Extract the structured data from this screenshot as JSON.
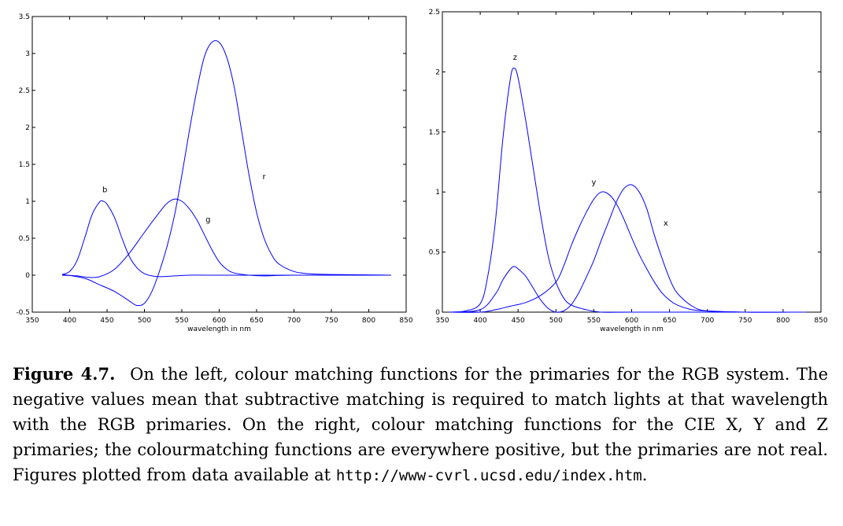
{
  "chart_data": [
    {
      "type": "line",
      "id": "rgb",
      "title": "",
      "xlabel": "wavelength in nm",
      "ylabel": "",
      "xlim": [
        350,
        850
      ],
      "ylim": [
        -0.5,
        3.5
      ],
      "xticks": [
        350,
        400,
        450,
        500,
        550,
        600,
        650,
        700,
        750,
        800,
        850
      ],
      "yticks": [
        -0.5,
        0,
        0.5,
        1,
        1.5,
        2,
        2.5,
        3,
        3.5
      ],
      "yticklabels": [
        "-0.5",
        "0",
        "0.5",
        "1",
        "1.5",
        "2",
        "2.5",
        "3",
        "3.5"
      ],
      "series": [
        {
          "name": "r",
          "color": "#0000ff",
          "label_at": [
            660,
            1.3
          ],
          "x": [
            390,
            410,
            425,
            440,
            460,
            480,
            490,
            500,
            510,
            520,
            530,
            540,
            550,
            560,
            570,
            580,
            590,
            600,
            610,
            620,
            630,
            640,
            650,
            660,
            670,
            680,
            700,
            720,
            750,
            830
          ],
          "y": [
            0.01,
            -0.02,
            -0.06,
            -0.13,
            -0.22,
            -0.35,
            -0.41,
            -0.38,
            -0.22,
            0.05,
            0.38,
            0.8,
            1.35,
            1.95,
            2.5,
            2.95,
            3.15,
            3.15,
            2.95,
            2.55,
            1.95,
            1.35,
            0.85,
            0.5,
            0.28,
            0.15,
            0.05,
            0.02,
            0.01,
            0
          ]
        },
        {
          "name": "g",
          "color": "#0000ff",
          "label_at": [
            585,
            0.72
          ],
          "x": [
            390,
            410,
            425,
            440,
            460,
            480,
            500,
            520,
            530,
            540,
            550,
            560,
            570,
            580,
            590,
            600,
            610,
            620,
            640,
            660,
            700,
            830
          ],
          "y": [
            0,
            -0.01,
            -0.03,
            -0.02,
            0.08,
            0.3,
            0.58,
            0.85,
            0.97,
            1.03,
            1.0,
            0.9,
            0.75,
            0.55,
            0.35,
            0.18,
            0.08,
            0.03,
            0.0,
            -0.01,
            0,
            0
          ]
        },
        {
          "name": "b",
          "color": "#0000ff",
          "label_at": [
            447,
            1.12
          ],
          "x": [
            390,
            400,
            410,
            420,
            430,
            440,
            445,
            450,
            460,
            470,
            480,
            490,
            500,
            510,
            520,
            540,
            560,
            600,
            700,
            830
          ],
          "y": [
            0.01,
            0.05,
            0.2,
            0.5,
            0.82,
            0.99,
            1.0,
            0.96,
            0.78,
            0.5,
            0.25,
            0.1,
            0.02,
            -0.01,
            -0.02,
            -0.01,
            0,
            0,
            0,
            0
          ]
        }
      ]
    },
    {
      "type": "line",
      "id": "xyz",
      "title": "",
      "xlabel": "wavelength in nm",
      "ylabel": "",
      "xlim": [
        350,
        850
      ],
      "ylim": [
        0,
        2.5
      ],
      "xticks": [
        350,
        400,
        450,
        500,
        550,
        600,
        650,
        700,
        750,
        800,
        850
      ],
      "yticks": [
        0,
        0.5,
        1,
        1.5,
        2,
        2.5
      ],
      "yticklabels": [
        "0",
        "0.5",
        "1",
        "1.5",
        "2",
        "2.5"
      ],
      "series": [
        {
          "name": "z",
          "color": "#0000ff",
          "label_at": [
            446,
            2.1
          ],
          "x": [
            360,
            380,
            400,
            410,
            420,
            430,
            440,
            445,
            450,
            460,
            470,
            480,
            490,
            500,
            510,
            520,
            540,
            560,
            600,
            700,
            830
          ],
          "y": [
            0,
            0.01,
            0.07,
            0.3,
            0.75,
            1.45,
            1.95,
            2.03,
            1.95,
            1.6,
            1.2,
            0.8,
            0.46,
            0.25,
            0.12,
            0.06,
            0.02,
            0,
            0,
            0,
            0
          ]
        },
        {
          "name": "y",
          "color": "#0000ff",
          "label_at": [
            550,
            1.06
          ],
          "x": [
            360,
            400,
            420,
            440,
            460,
            480,
            500,
            510,
            520,
            530,
            540,
            550,
            560,
            570,
            580,
            590,
            600,
            610,
            620,
            630,
            640,
            650,
            660,
            680,
            700,
            750,
            830
          ],
          "y": [
            0,
            0.0,
            0.02,
            0.05,
            0.08,
            0.14,
            0.25,
            0.38,
            0.55,
            0.7,
            0.83,
            0.94,
            1.0,
            0.98,
            0.9,
            0.77,
            0.62,
            0.48,
            0.36,
            0.25,
            0.16,
            0.1,
            0.06,
            0.02,
            0.01,
            0,
            0
          ]
        },
        {
          "name": "x",
          "color": "#0000ff",
          "label_at": [
            645,
            0.72
          ],
          "x": [
            360,
            400,
            420,
            430,
            440,
            445,
            450,
            460,
            470,
            480,
            490,
            500,
            510,
            520,
            530,
            540,
            550,
            560,
            570,
            580,
            590,
            600,
            610,
            620,
            630,
            640,
            650,
            660,
            680,
            700,
            750,
            830
          ],
          "y": [
            0,
            0.02,
            0.15,
            0.27,
            0.36,
            0.38,
            0.36,
            0.3,
            0.2,
            0.1,
            0.03,
            0.0,
            0.01,
            0.06,
            0.16,
            0.29,
            0.43,
            0.6,
            0.76,
            0.92,
            1.03,
            1.06,
            1.0,
            0.86,
            0.64,
            0.45,
            0.28,
            0.16,
            0.05,
            0.01,
            0,
            0
          ]
        }
      ]
    }
  ],
  "caption": {
    "lead": "Figure 4.7.",
    "text": "On the left, colour matching functions for the primaries for the RGB system. The negative values mean that subtractive matching is required to match lights at that wavelength with the RGB primaries. On the right, colour matching functions for the CIE X, Y and Z primaries; the colourmatching functions are everywhere positive, but the primaries are not real. Figures plotted from data available at",
    "url": "http://www-cvrl.ucsd.edu/index.htm",
    "end": "."
  }
}
